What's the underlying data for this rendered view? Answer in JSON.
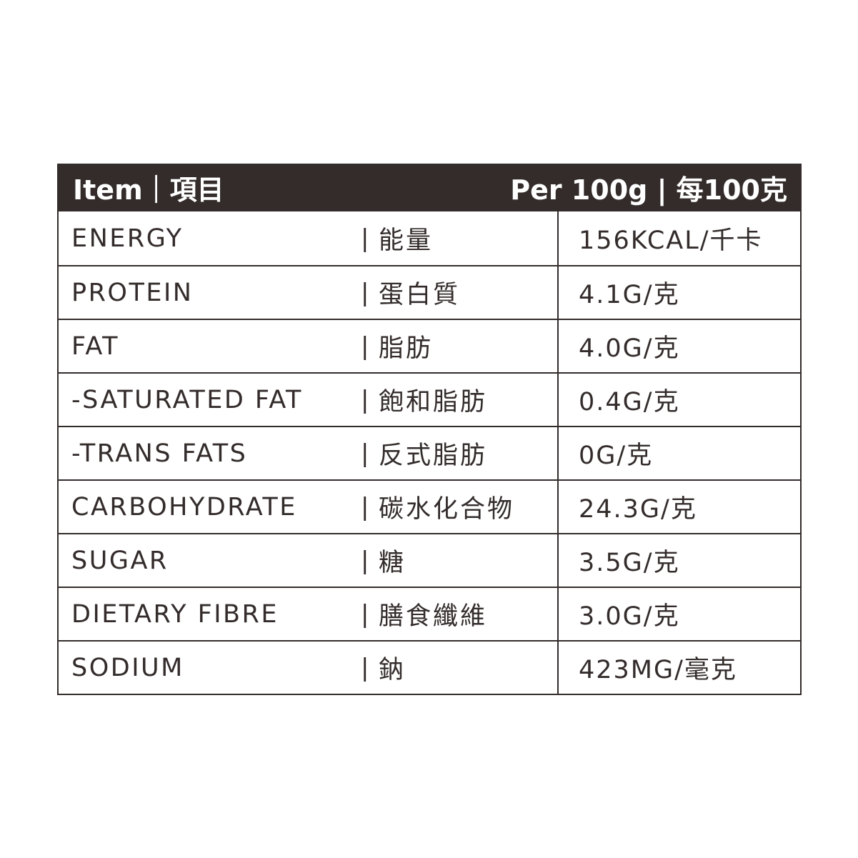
{
  "header": {
    "item": "Item｜項目",
    "per": "Per 100g | 每100克",
    "color": "#332c2b"
  },
  "separator": "|",
  "rows": [
    {
      "en": "ENERGY",
      "zh": "能量",
      "value": "156KCAL/千卡"
    },
    {
      "en": "PROTEIN",
      "zh": "蛋白質",
      "value": "4.1G/克"
    },
    {
      "en": "FAT",
      "zh": "脂肪",
      "value": "4.0G/克"
    },
    {
      "en": "-SATURATED FAT",
      "zh": "飽和脂肪",
      "value": "0.4G/克"
    },
    {
      "en": "-TRANS FATS",
      "zh": "反式脂肪",
      "value": "0G/克"
    },
    {
      "en": "CARBOHYDRATE",
      "zh": "碳水化合物",
      "value": "24.3G/克"
    },
    {
      "en": "SUGAR",
      "zh": "糖",
      "value": "3.5G/克"
    },
    {
      "en": "DIETARY FIBRE",
      "zh": "膳食纖維",
      "value": "3.0G/克"
    },
    {
      "en": "SODIUM",
      "zh": "鈉",
      "value": "423MG/毫克"
    }
  ]
}
